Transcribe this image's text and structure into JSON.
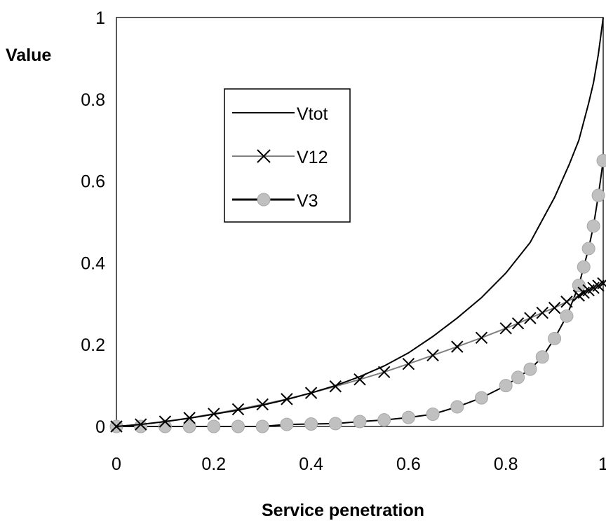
{
  "chart_data": {
    "type": "line",
    "xlabel": "Service penetration",
    "ylabel": "Value",
    "xlim": [
      0,
      1
    ],
    "ylim": [
      0,
      1
    ],
    "x_ticks": [
      "0",
      "0.2",
      "0.4",
      "0.6",
      "0.8",
      "1"
    ],
    "y_ticks": [
      "0",
      "0.2",
      "0.4",
      "0.6",
      "0.8",
      "1"
    ],
    "grid": false,
    "legend_position": "upper-left-inside",
    "series": [
      {
        "name": "Vtot",
        "color": "#000000",
        "marker": "none",
        "x": [
          0,
          0.05,
          0.1,
          0.15,
          0.2,
          0.25,
          0.3,
          0.35,
          0.4,
          0.45,
          0.5,
          0.55,
          0.6,
          0.65,
          0.7,
          0.75,
          0.8,
          0.85,
          0.9,
          0.93,
          0.95,
          0.97,
          0.98,
          0.99,
          1.0
        ],
        "y": [
          0,
          0.005,
          0.012,
          0.02,
          0.03,
          0.04,
          0.052,
          0.066,
          0.082,
          0.1,
          0.122,
          0.148,
          0.18,
          0.22,
          0.265,
          0.315,
          0.375,
          0.45,
          0.56,
          0.64,
          0.7,
          0.79,
          0.84,
          0.91,
          1.0
        ]
      },
      {
        "name": "V12",
        "color": "#808080",
        "marker": "x",
        "x": [
          0,
          0.05,
          0.1,
          0.15,
          0.2,
          0.25,
          0.3,
          0.35,
          0.4,
          0.45,
          0.5,
          0.55,
          0.6,
          0.65,
          0.7,
          0.75,
          0.8,
          0.825,
          0.85,
          0.875,
          0.9,
          0.925,
          0.95,
          0.96,
          0.97,
          0.98,
          0.99,
          1.0
        ],
        "y": [
          0,
          0.005,
          0.012,
          0.021,
          0.031,
          0.042,
          0.054,
          0.067,
          0.082,
          0.098,
          0.115,
          0.133,
          0.153,
          0.174,
          0.195,
          0.217,
          0.24,
          0.252,
          0.265,
          0.278,
          0.29,
          0.305,
          0.32,
          0.327,
          0.333,
          0.339,
          0.344,
          0.35
        ]
      },
      {
        "name": "V3",
        "color": "#000000",
        "marker_color": "#c0c0c0",
        "marker": "circle",
        "x": [
          0,
          0.05,
          0.1,
          0.15,
          0.2,
          0.25,
          0.3,
          0.35,
          0.4,
          0.45,
          0.5,
          0.55,
          0.6,
          0.65,
          0.7,
          0.75,
          0.8,
          0.825,
          0.85,
          0.875,
          0.9,
          0.925,
          0.95,
          0.96,
          0.97,
          0.98,
          0.99,
          1.0
        ],
        "y": [
          0,
          0,
          0,
          0,
          0,
          0,
          0,
          0.005,
          0.006,
          0.007,
          0.012,
          0.016,
          0.022,
          0.03,
          0.048,
          0.07,
          0.1,
          0.12,
          0.14,
          0.17,
          0.215,
          0.27,
          0.345,
          0.39,
          0.435,
          0.49,
          0.565,
          0.65
        ]
      }
    ]
  }
}
